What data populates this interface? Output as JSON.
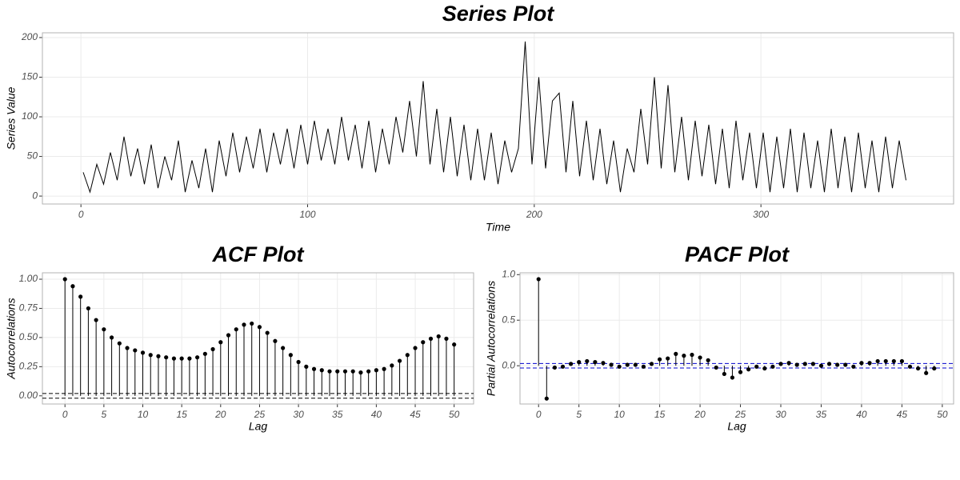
{
  "chart_data": [
    {
      "type": "line",
      "title": "Series Plot",
      "x_label": "Time",
      "y_label": "Series Value",
      "color": "#000000",
      "x": [
        1,
        4,
        7,
        10,
        13,
        16,
        19,
        22,
        25,
        28,
        31,
        34,
        37,
        40,
        43,
        46,
        49,
        52,
        55,
        58,
        61,
        64,
        67,
        70,
        73,
        76,
        79,
        82,
        85,
        88,
        91,
        94,
        97,
        100,
        103,
        106,
        109,
        112,
        115,
        118,
        121,
        124,
        127,
        130,
        133,
        136,
        139,
        142,
        145,
        148,
        151,
        154,
        157,
        160,
        163,
        166,
        169,
        172,
        175,
        178,
        181,
        184,
        187,
        190,
        193,
        196,
        199,
        202,
        205,
        208,
        211,
        214,
        217,
        220,
        223,
        226,
        229,
        232,
        235,
        238,
        241,
        244,
        247,
        250,
        253,
        256,
        259,
        262,
        265,
        268,
        271,
        274,
        277,
        280,
        283,
        286,
        289,
        292,
        295,
        298,
        301,
        304,
        307,
        310,
        313,
        316,
        319,
        322,
        325,
        328,
        331,
        334,
        337,
        340,
        343,
        346,
        349,
        352,
        355,
        358,
        361,
        364
      ],
      "values": [
        30,
        5,
        40,
        15,
        55,
        20,
        75,
        25,
        60,
        15,
        65,
        10,
        50,
        20,
        70,
        5,
        45,
        10,
        60,
        5,
        70,
        25,
        80,
        30,
        75,
        35,
        85,
        30,
        80,
        40,
        85,
        35,
        90,
        40,
        95,
        45,
        85,
        40,
        100,
        45,
        90,
        35,
        95,
        30,
        85,
        40,
        100,
        55,
        120,
        50,
        145,
        40,
        110,
        30,
        100,
        25,
        90,
        20,
        85,
        20,
        80,
        15,
        70,
        30,
        60,
        195,
        40,
        150,
        35,
        120,
        130,
        30,
        120,
        25,
        95,
        20,
        85,
        15,
        70,
        5,
        60,
        30,
        110,
        40,
        150,
        35,
        140,
        30,
        100,
        20,
        95,
        25,
        90,
        15,
        85,
        10,
        95,
        20,
        80,
        10,
        80,
        5,
        75,
        10,
        85,
        5,
        80,
        10,
        70,
        5,
        85,
        10,
        75,
        5,
        80,
        10,
        70,
        5,
        75,
        10,
        70,
        20
      ],
      "xlim": [
        -17,
        385
      ],
      "ylim": [
        -10,
        206
      ],
      "xticks": [
        0,
        100,
        200,
        300
      ],
      "yticks": [
        0,
        50,
        100,
        150,
        200
      ],
      "grid": true
    },
    {
      "type": "stem",
      "title": "ACF Plot",
      "x_label": "Lag",
      "y_label": "Autocorrelations",
      "color": "#000000",
      "ci_color": "#000000",
      "x": [
        0,
        1,
        2,
        3,
        4,
        5,
        6,
        7,
        8,
        9,
        10,
        11,
        12,
        13,
        14,
        15,
        16,
        17,
        18,
        19,
        20,
        21,
        22,
        23,
        24,
        25,
        26,
        27,
        28,
        29,
        30,
        31,
        32,
        33,
        34,
        35,
        36,
        37,
        38,
        39,
        40,
        41,
        42,
        43,
        44,
        45,
        46,
        47,
        48,
        49,
        50
      ],
      "values": [
        1.0,
        0.94,
        0.85,
        0.75,
        0.65,
        0.57,
        0.5,
        0.45,
        0.41,
        0.39,
        0.37,
        0.35,
        0.34,
        0.33,
        0.32,
        0.32,
        0.32,
        0.33,
        0.36,
        0.4,
        0.46,
        0.52,
        0.57,
        0.61,
        0.62,
        0.59,
        0.54,
        0.47,
        0.41,
        0.35,
        0.29,
        0.25,
        0.23,
        0.22,
        0.21,
        0.21,
        0.21,
        0.21,
        0.2,
        0.21,
        0.22,
        0.23,
        0.26,
        0.3,
        0.35,
        0.41,
        0.46,
        0.49,
        0.51,
        0.49,
        0.44
      ],
      "ci": [
        -0.02,
        0.02
      ],
      "xlim": [
        -2.9,
        52.5
      ],
      "ylim": [
        -0.07,
        1.055
      ],
      "xticks": [
        0,
        5,
        10,
        15,
        20,
        25,
        30,
        35,
        40,
        45,
        50
      ],
      "yticks": [
        {
          "value": 0,
          "label": "0.00"
        },
        {
          "value": 0.25,
          "label": "0.25"
        },
        {
          "value": 0.5,
          "label": "0.50"
        },
        {
          "value": 0.75,
          "label": "0.75"
        },
        {
          "value": 1,
          "label": "1.00"
        }
      ],
      "grid": true
    },
    {
      "type": "stem",
      "title": "PACF Plot",
      "x_label": "Lag",
      "y_label": "Partial Autocorrelations",
      "color": "#000000",
      "ci_color": "#0000cc",
      "x": [
        0,
        1,
        2,
        3,
        4,
        5,
        6,
        7,
        8,
        9,
        10,
        11,
        12,
        13,
        14,
        15,
        16,
        17,
        18,
        19,
        20,
        21,
        22,
        23,
        24,
        25,
        26,
        27,
        28,
        29,
        30,
        31,
        32,
        33,
        34,
        35,
        36,
        37,
        38,
        39,
        40,
        41,
        42,
        43,
        44,
        45,
        46,
        47,
        48,
        49
      ],
      "values": [
        0.95,
        -0.36,
        -0.02,
        -0.01,
        0.02,
        0.04,
        0.05,
        0.04,
        0.03,
        0.01,
        -0.01,
        0.01,
        0.01,
        -0.01,
        0.02,
        0.07,
        0.08,
        0.13,
        0.11,
        0.12,
        0.09,
        0.06,
        -0.02,
        -0.09,
        -0.13,
        -0.07,
        -0.04,
        -0.01,
        -0.03,
        -0.01,
        0.02,
        0.03,
        0.01,
        0.02,
        0.02,
        0.0,
        0.02,
        0.01,
        0.01,
        -0.01,
        0.03,
        0.03,
        0.05,
        0.05,
        0.05,
        0.05,
        -0.01,
        -0.03,
        -0.08,
        -0.03
      ],
      "ci": [
        -0.025,
        0.025
      ],
      "xlim": [
        -2.3,
        51.4
      ],
      "ylim": [
        -0.42,
        1.02
      ],
      "xticks": [
        0,
        5,
        10,
        15,
        20,
        25,
        30,
        35,
        40,
        45,
        50
      ],
      "yticks": [
        {
          "value": 0,
          "label": "0.0"
        },
        {
          "value": 0.5,
          "label": "0.5"
        },
        {
          "value": 1,
          "label": "1.0"
        }
      ],
      "grid": true
    }
  ]
}
